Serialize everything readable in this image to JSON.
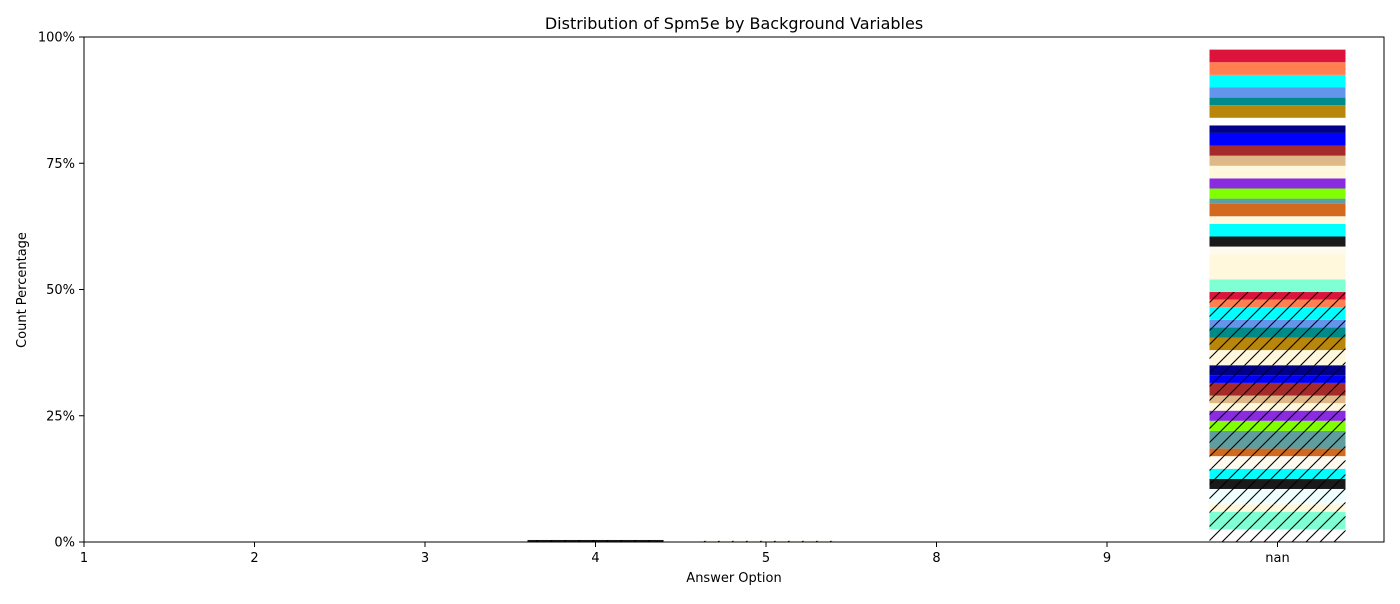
{
  "chart_data": {
    "type": "bar",
    "stacked": true,
    "title": "Distribution of Spm5e by Background Variables",
    "xlabel": "Answer Option",
    "ylabel": "Count Percentage",
    "categories": [
      "1",
      "2",
      "3",
      "4",
      "5",
      "8",
      "9",
      "nan"
    ],
    "ylim": [
      0,
      100
    ],
    "yticks": [
      0,
      25,
      50,
      75,
      100
    ],
    "ytick_labels": [
      "0%",
      "25%",
      "50%",
      "75%",
      "100%"
    ],
    "grid": false,
    "legend": "none",
    "series": [
      {
        "color": "#ffffff",
        "hatched": true,
        "values": [
          0,
          0,
          0,
          0,
          0,
          0,
          0,
          2.5
        ]
      },
      {
        "color": "#7fffd4",
        "hatched": true,
        "values": [
          0,
          0,
          0,
          0,
          0,
          0,
          0,
          3.5
        ]
      },
      {
        "color": "#fff8dc",
        "hatched": true,
        "values": [
          0,
          0,
          0,
          0,
          0.1,
          0,
          0,
          1.5
        ]
      },
      {
        "color": "#f0ffff",
        "hatched": true,
        "values": [
          0,
          0,
          0,
          0,
          0,
          0,
          0,
          3.0
        ]
      },
      {
        "color": "#1a1a1a",
        "hatched": true,
        "values": [
          0,
          0,
          0,
          0.4,
          0,
          0,
          0,
          2.0
        ]
      },
      {
        "color": "#00ffff",
        "hatched": true,
        "values": [
          0,
          0,
          0,
          0,
          0,
          0,
          0,
          2.0
        ]
      },
      {
        "color": "#fffaf0",
        "hatched": true,
        "values": [
          0,
          0,
          0,
          0,
          0,
          0,
          0,
          2.5
        ]
      },
      {
        "color": "#d2691e",
        "hatched": true,
        "values": [
          0,
          0,
          0,
          0,
          0,
          0,
          0,
          1.5
        ]
      },
      {
        "color": "#5f9ea0",
        "hatched": true,
        "values": [
          0,
          0,
          0,
          0,
          0,
          0,
          0,
          3.5
        ]
      },
      {
        "color": "#7fff00",
        "hatched": true,
        "values": [
          0,
          0,
          0,
          0,
          0,
          0,
          0,
          2.0
        ]
      },
      {
        "color": "#8a2be2",
        "hatched": true,
        "values": [
          0,
          0,
          0,
          0,
          0,
          0,
          0,
          2.0
        ]
      },
      {
        "color": "#fff8dc",
        "hatched": true,
        "values": [
          0,
          0,
          0,
          0,
          0,
          0,
          0,
          1.5
        ]
      },
      {
        "color": "#deb887",
        "hatched": true,
        "values": [
          0,
          0,
          0,
          0,
          0,
          0,
          0,
          1.5
        ]
      },
      {
        "color": "#a52a2a",
        "hatched": true,
        "values": [
          0,
          0,
          0,
          0,
          0,
          0,
          0,
          2.5
        ]
      },
      {
        "color": "#0000ff",
        "hatched": true,
        "values": [
          0,
          0,
          0,
          0,
          0,
          0,
          0,
          1.5
        ]
      },
      {
        "color": "#00008b",
        "hatched": true,
        "values": [
          0,
          0,
          0,
          0,
          0,
          0,
          0,
          2.0
        ]
      },
      {
        "color": "#fff8dc",
        "hatched": true,
        "values": [
          0,
          0,
          0,
          0,
          0,
          0,
          0,
          3.0
        ]
      },
      {
        "color": "#b8860b",
        "hatched": true,
        "values": [
          0,
          0,
          0,
          0,
          0,
          0,
          0,
          2.5
        ]
      },
      {
        "color": "#008b8b",
        "hatched": true,
        "values": [
          0,
          0,
          0,
          0,
          0,
          0,
          0,
          2.0
        ]
      },
      {
        "color": "#6495ed",
        "hatched": true,
        "values": [
          0,
          0,
          0,
          0,
          0,
          0,
          0,
          1.5
        ]
      },
      {
        "color": "#00ffff",
        "hatched": true,
        "values": [
          0,
          0,
          0,
          0,
          0,
          0,
          0,
          2.5
        ]
      },
      {
        "color": "#ff7f50",
        "hatched": true,
        "values": [
          0,
          0,
          0,
          0,
          0,
          0,
          0,
          1.5
        ]
      },
      {
        "color": "#dc143c",
        "hatched": true,
        "values": [
          0,
          0,
          0,
          0,
          0,
          0,
          0,
          1.5
        ]
      },
      {
        "color": "#7fffd4",
        "hatched": false,
        "values": [
          0,
          0,
          0,
          0,
          0,
          0,
          0,
          2.5
        ]
      },
      {
        "color": "#fff8dc",
        "hatched": false,
        "values": [
          0,
          0,
          0,
          0,
          0,
          0,
          0,
          5.0
        ]
      },
      {
        "color": "#fffaf0",
        "hatched": false,
        "values": [
          0,
          0,
          0,
          0,
          0,
          0,
          0,
          1.5
        ]
      },
      {
        "color": "#1a1a1a",
        "hatched": false,
        "values": [
          0,
          0,
          0,
          0,
          0,
          0,
          0,
          2.0
        ]
      },
      {
        "color": "#00ffff",
        "hatched": false,
        "values": [
          0,
          0,
          0,
          0,
          0,
          0,
          0,
          2.5
        ]
      },
      {
        "color": "#fff8dc",
        "hatched": false,
        "values": [
          0,
          0,
          0,
          0,
          0,
          0,
          0,
          1.5
        ]
      },
      {
        "color": "#d2691e",
        "hatched": false,
        "values": [
          0,
          0,
          0,
          0,
          0,
          0,
          0,
          2.5
        ]
      },
      {
        "color": "#5f9ea0",
        "hatched": false,
        "values": [
          0,
          0,
          0,
          0,
          0,
          0,
          0,
          1.0
        ]
      },
      {
        "color": "#7fff00",
        "hatched": false,
        "values": [
          0,
          0,
          0,
          0,
          0,
          0,
          0,
          2.0
        ]
      },
      {
        "color": "#8a2be2",
        "hatched": false,
        "values": [
          0,
          0,
          0,
          0,
          0,
          0,
          0,
          2.0
        ]
      },
      {
        "color": "#fff8dc",
        "hatched": false,
        "values": [
          0,
          0,
          0,
          0,
          0,
          0,
          0,
          2.5
        ]
      },
      {
        "color": "#deb887",
        "hatched": false,
        "values": [
          0,
          0,
          0,
          0,
          0,
          0,
          0,
          2.0
        ]
      },
      {
        "color": "#a52a2a",
        "hatched": false,
        "values": [
          0,
          0,
          0,
          0,
          0,
          0,
          0,
          2.0
        ]
      },
      {
        "color": "#0000ff",
        "hatched": false,
        "values": [
          0,
          0,
          0,
          0,
          0,
          0,
          0,
          2.5
        ]
      },
      {
        "color": "#00008b",
        "hatched": false,
        "values": [
          0,
          0,
          0,
          0,
          0,
          0,
          0,
          1.5
        ]
      },
      {
        "color": "#ffffff",
        "hatched": false,
        "values": [
          0,
          0,
          0,
          0,
          0,
          0,
          0,
          1.5
        ]
      },
      {
        "color": "#b8860b",
        "hatched": false,
        "values": [
          0,
          0,
          0,
          0,
          0,
          0,
          0,
          2.5
        ]
      },
      {
        "color": "#008b8b",
        "hatched": false,
        "values": [
          0,
          0,
          0,
          0,
          0,
          0,
          0,
          1.5
        ]
      },
      {
        "color": "#6495ed",
        "hatched": false,
        "values": [
          0,
          0,
          0,
          0,
          0,
          0,
          0,
          2.0
        ]
      },
      {
        "color": "#00ffff",
        "hatched": false,
        "values": [
          0,
          0,
          0,
          0,
          0,
          0,
          0,
          2.5
        ]
      },
      {
        "color": "#ff7f50",
        "hatched": false,
        "values": [
          0,
          0,
          0,
          0,
          0,
          0,
          0,
          2.5
        ]
      },
      {
        "color": "#dc143c",
        "hatched": false,
        "values": [
          0,
          0,
          0,
          0,
          0,
          0,
          0,
          2.5
        ]
      }
    ]
  }
}
